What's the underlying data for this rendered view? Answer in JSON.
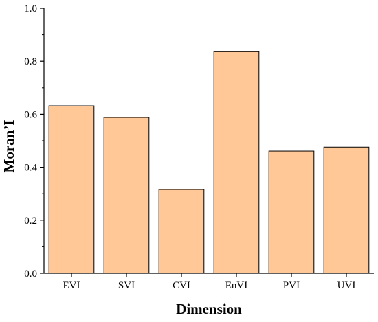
{
  "chart_data": {
    "type": "bar",
    "categories": [
      "EVI",
      "SVI",
      "CVI",
      "EnVI",
      "PVI",
      "UVI"
    ],
    "values": [
      0.632,
      0.588,
      0.316,
      0.836,
      0.461,
      0.476
    ],
    "xlabel": "Dimension",
    "ylabel": "Moran’I",
    "ylim": [
      0,
      1.0
    ],
    "yticks": [
      "0.0",
      "0.2",
      "0.4",
      "0.6",
      "0.8",
      "1.0"
    ],
    "grid": false,
    "legend": "none",
    "bar_color": "#FFC896",
    "bar_edge_color": "#000000"
  }
}
